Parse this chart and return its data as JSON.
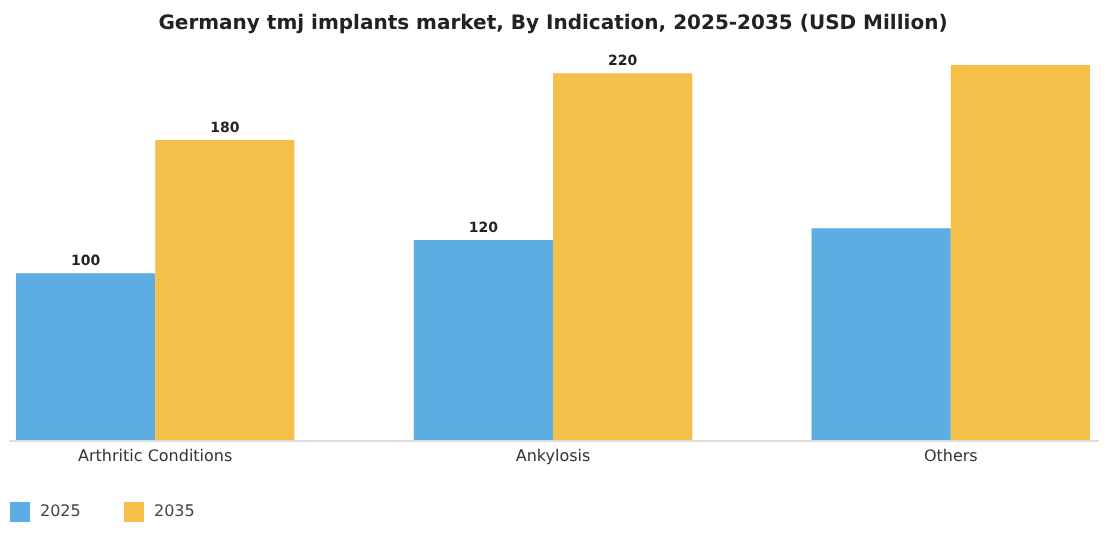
{
  "chart_data": {
    "type": "bar",
    "title": "Germany tmj implants market, By Indication, 2025-2035 (USD Million)",
    "categories": [
      "Arthritic Conditions",
      "Ankylosis",
      "Others"
    ],
    "series": [
      {
        "name": "2025",
        "color": "#5dade2",
        "values": [
          100,
          120,
          127
        ],
        "value_labels": [
          "100",
          "120",
          null
        ]
      },
      {
        "name": "2035",
        "color": "#f5c04a",
        "values": [
          180,
          220,
          225
        ],
        "value_labels": [
          "180",
          "220",
          null
        ]
      }
    ],
    "legend": "bottom"
  }
}
